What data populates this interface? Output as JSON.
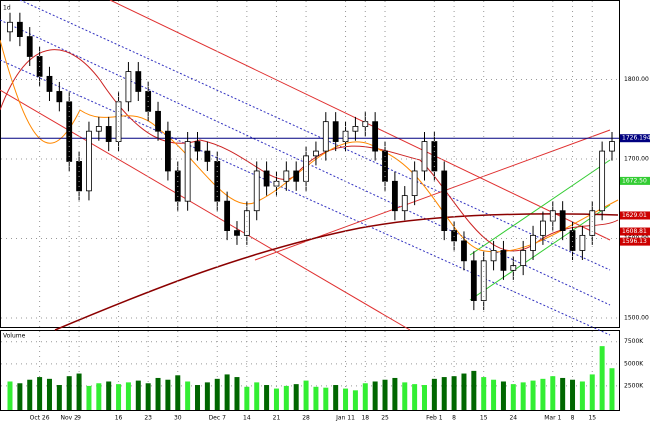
{
  "chart_data": [
    {
      "type": "candlestick",
      "title": "1d",
      "open": [
        1860,
        1872,
        1854,
        1829,
        1804,
        1785,
        1772,
        1697,
        1660,
        1735,
        1741,
        1722,
        1772,
        1810,
        1785,
        1760,
        1735,
        1685,
        1647,
        1722,
        1710,
        1697,
        1647,
        1610,
        1604,
        1635,
        1685,
        1666,
        1672,
        1685,
        1672,
        1704,
        1710,
        1747,
        1722,
        1735,
        1741,
        1747,
        1710,
        1672,
        1635,
        1654,
        1685,
        1722,
        1685,
        1610,
        1597,
        1572,
        1522,
        1572,
        1585,
        1560,
        1566,
        1585,
        1604,
        1622,
        1635,
        1610,
        1585,
        1604,
        1635,
        1710
      ],
      "high": [
        1884,
        1884,
        1866,
        1841,
        1816,
        1797,
        1784,
        1709,
        1747,
        1753,
        1753,
        1784,
        1822,
        1822,
        1797,
        1772,
        1747,
        1697,
        1734,
        1734,
        1722,
        1709,
        1659,
        1622,
        1647,
        1697,
        1697,
        1684,
        1697,
        1697,
        1716,
        1722,
        1759,
        1759,
        1747,
        1753,
        1759,
        1759,
        1722,
        1684,
        1666,
        1697,
        1734,
        1734,
        1697,
        1622,
        1609,
        1584,
        1584,
        1597,
        1597,
        1578,
        1597,
        1616,
        1634,
        1647,
        1647,
        1622,
        1616,
        1647,
        1722,
        1734
      ],
      "low": [
        1848,
        1842,
        1817,
        1792,
        1773,
        1760,
        1685,
        1648,
        1648,
        1723,
        1710,
        1710,
        1760,
        1773,
        1748,
        1723,
        1673,
        1635,
        1635,
        1698,
        1685,
        1635,
        1598,
        1592,
        1592,
        1623,
        1654,
        1654,
        1660,
        1660,
        1660,
        1692,
        1698,
        1710,
        1710,
        1723,
        1729,
        1698,
        1660,
        1623,
        1623,
        1642,
        1673,
        1673,
        1598,
        1585,
        1560,
        1510,
        1510,
        1560,
        1548,
        1548,
        1554,
        1573,
        1592,
        1610,
        1598,
        1573,
        1573,
        1592,
        1623,
        1698
      ],
      "close": [
        1872,
        1854,
        1829,
        1804,
        1785,
        1772,
        1697,
        1660,
        1735,
        1741,
        1722,
        1772,
        1810,
        1785,
        1760,
        1735,
        1685,
        1647,
        1722,
        1710,
        1697,
        1647,
        1610,
        1604,
        1635,
        1685,
        1666,
        1672,
        1685,
        1672,
        1704,
        1710,
        1747,
        1722,
        1735,
        1741,
        1747,
        1710,
        1672,
        1635,
        1654,
        1685,
        1722,
        1685,
        1610,
        1597,
        1572,
        1522,
        1572,
        1585,
        1560,
        1566,
        1585,
        1604,
        1622,
        1635,
        1610,
        1585,
        1604,
        1635,
        1710,
        1722
      ],
      "up_color": "#ffffff",
      "down_color": "#000000",
      "ylim": [
        1490,
        1895
      ],
      "yticks": [
        {
          "value": 1800,
          "label": "1800.00"
        },
        {
          "value": 1700,
          "label": "1700.00"
        },
        {
          "value": 1600,
          "label": "1600.00"
        },
        {
          "value": 1500,
          "label": "1500.00"
        }
      ],
      "hline": {
        "value": 1726.1946,
        "label": "1726.1946",
        "color": "#000080"
      },
      "price_labels": [
        {
          "value": 1672.5,
          "label": "1672.50",
          "color": "#33cc33"
        },
        {
          "value": 1629.01,
          "label": "1629.01",
          "color": "#cc0000"
        },
        {
          "value": 1608.81,
          "label": "1608.81",
          "color": "#cc0000"
        },
        {
          "value": 1596.13,
          "label": "1596.13",
          "color": "#cc0000"
        }
      ],
      "grid": true
    },
    {
      "type": "bar",
      "title": "Volume",
      "categories": [
        null,
        null,
        null,
        "Oct 26",
        null,
        null,
        "Nov 2",
        "9",
        null,
        null,
        null,
        "16",
        null,
        null,
        "23",
        null,
        null,
        "30",
        null,
        null,
        null,
        "Dec 7",
        null,
        null,
        "14",
        null,
        null,
        "21",
        null,
        null,
        "28",
        null,
        null,
        null,
        "Jan 11",
        null,
        "18",
        null,
        "25",
        null,
        null,
        null,
        null,
        "Feb 1",
        null,
        "8",
        null,
        null,
        "15",
        null,
        null,
        "24",
        null,
        null,
        null,
        "Mar 1",
        null,
        "8",
        null,
        "15",
        null,
        null
      ],
      "values": [
        3000,
        2800,
        3200,
        3500,
        3300,
        2600,
        3600,
        3900,
        2500,
        2800,
        3000,
        2700,
        2900,
        3100,
        2800,
        3400,
        3200,
        3700,
        3000,
        2600,
        2900,
        3300,
        3800,
        3500,
        2400,
        2900,
        2600,
        2200,
        2500,
        2700,
        3100,
        2400,
        2300,
        2600,
        2200,
        2000,
        2800,
        3000,
        3200,
        3400,
        2900,
        2700,
        2600,
        3300,
        3500,
        3600,
        3900,
        4200,
        3500,
        3200,
        3000,
        2700,
        2900,
        3100,
        3300,
        3600,
        3400,
        3200,
        3000,
        3800,
        7000,
        4500
      ],
      "up_color": "#33ee33",
      "down_color": "#006600",
      "ylim": [
        0,
        8600
      ],
      "yticks": [
        {
          "value": 7500,
          "label": "7500K"
        },
        {
          "value": 5000,
          "label": "5000K"
        },
        {
          "value": 2500,
          "label": "2500K"
        }
      ],
      "grid": true
    }
  ]
}
